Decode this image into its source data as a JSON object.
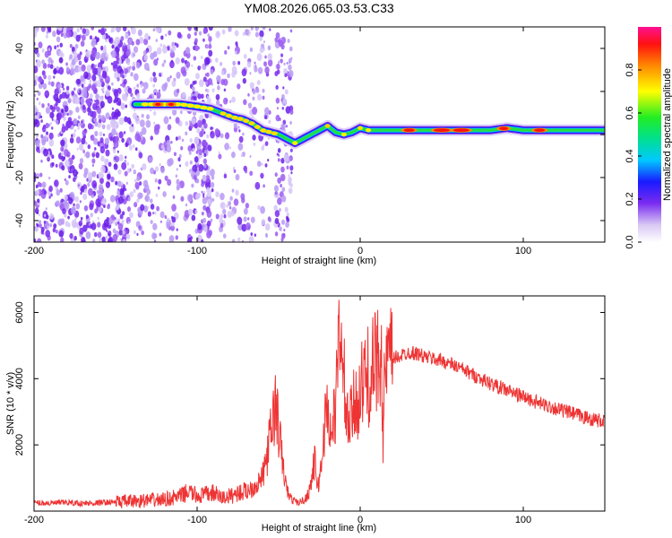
{
  "title": "YM08.2026.065.03.53.C33",
  "chart_data": [
    {
      "type": "heatmap",
      "name": "spectrogram",
      "xlabel": "Height of straight line (km)",
      "ylabel": "Frequency (Hz)",
      "xlim": [
        -200,
        150
      ],
      "ylim": [
        -50,
        50
      ],
      "xticks": [
        -200,
        -100,
        0,
        100
      ],
      "xtick_labels": [
        "-200",
        "-100",
        "0",
        "100"
      ],
      "yticks": [
        -40,
        -20,
        0,
        20,
        40
      ],
      "ytick_labels": [
        "-40",
        "-20",
        "0",
        "20",
        "40"
      ],
      "colorbar": {
        "label": "Normalized spectral amplitude",
        "range": [
          0,
          1
        ],
        "ticks": [
          0.0,
          0.2,
          0.4,
          0.6,
          0.8
        ],
        "tick_labels": [
          "0.0",
          "0.2",
          "0.4",
          "0.6",
          "0.8"
        ]
      },
      "ridge": {
        "x": [
          -138,
          -125,
          -110,
          -100,
          -92,
          -85,
          -78,
          -72,
          -66,
          -60,
          -55,
          -50,
          -45,
          -40,
          -35,
          -30,
          -25,
          -20,
          -15,
          -10,
          -5,
          0,
          5,
          10,
          20,
          40,
          60,
          80,
          90,
          100,
          120,
          150
        ],
        "freq": [
          14,
          14,
          14,
          13,
          12,
          10,
          8,
          7,
          5,
          2,
          1,
          0,
          -2,
          -4,
          -2,
          0,
          2,
          4,
          1,
          0,
          1,
          3,
          2,
          2,
          2,
          2,
          2,
          2,
          3,
          2,
          2,
          2
        ]
      }
    },
    {
      "type": "line",
      "name": "snr",
      "xlabel": "Height of straight line (km)",
      "ylabel": "SNR (10 * v/v)",
      "xlim": [
        -200,
        150
      ],
      "ylim": [
        0,
        6500
      ],
      "xticks": [
        -200,
        -100,
        0,
        100
      ],
      "xtick_labels": [
        "-200",
        "-100",
        "0",
        "100"
      ],
      "yticks": [
        2000,
        4000,
        6000
      ],
      "ytick_labels": [
        "2000",
        "4000",
        "6000"
      ],
      "color": "#ee3333",
      "x": [
        -200,
        -190,
        -180,
        -170,
        -160,
        -150,
        -140,
        -130,
        -120,
        -110,
        -105,
        -100,
        -95,
        -90,
        -85,
        -80,
        -75,
        -70,
        -65,
        -60,
        -57,
        -54,
        -52,
        -50,
        -48,
        -46,
        -44,
        -42,
        -40,
        -38,
        -36,
        -34,
        -32,
        -30,
        -28,
        -27,
        -26,
        -24,
        -22,
        -20,
        -18,
        -16,
        -14,
        -13,
        -12,
        -11,
        -10,
        -8,
        -6,
        -4,
        -2,
        0,
        2,
        4,
        6,
        8,
        10,
        12,
        13,
        14,
        15,
        16,
        18,
        20,
        25,
        30,
        35,
        40,
        50,
        60,
        70,
        80,
        90,
        100,
        110,
        120,
        130,
        140,
        150
      ],
      "y": [
        250,
        240,
        260,
        230,
        250,
        280,
        300,
        320,
        350,
        450,
        600,
        450,
        500,
        550,
        400,
        450,
        550,
        600,
        750,
        1000,
        1700,
        2600,
        3200,
        2500,
        1600,
        900,
        500,
        350,
        300,
        250,
        300,
        350,
        500,
        900,
        1500,
        1200,
        700,
        1300,
        2500,
        3300,
        2200,
        2800,
        3900,
        5200,
        6500,
        3500,
        4000,
        2600,
        2700,
        3100,
        3400,
        3600,
        3900,
        4100,
        4000,
        4300,
        4500,
        4600,
        6200,
        1500,
        4200,
        4400,
        4500,
        4600,
        4700,
        4800,
        4750,
        4650,
        4550,
        4350,
        4100,
        3850,
        3650,
        3450,
        3250,
        3100,
        2950,
        2800,
        2700
      ]
    }
  ]
}
